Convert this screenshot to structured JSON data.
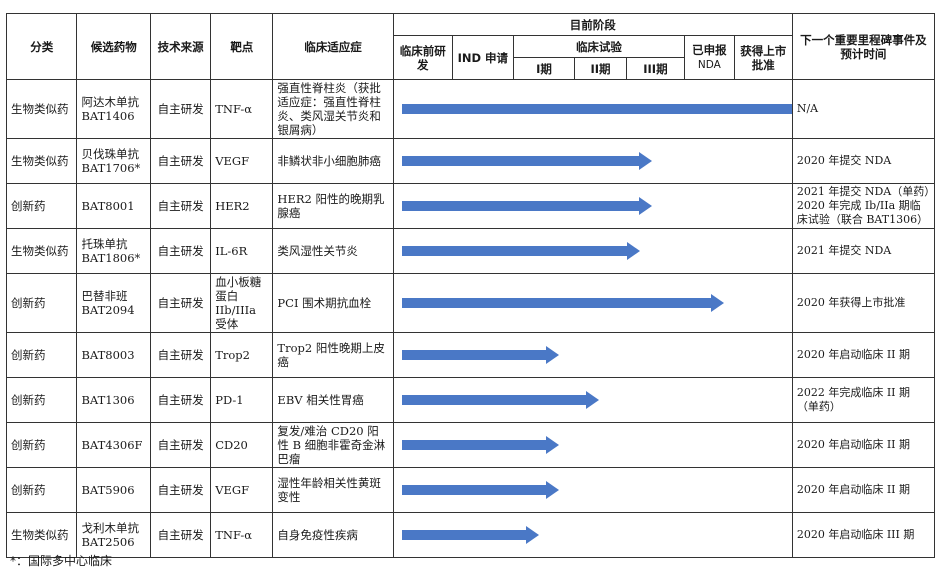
{
  "headers": {
    "category": "分类",
    "candidate": "候选药物",
    "tech_source": "技术来源",
    "target": "靶点",
    "indication": "临床适应症",
    "current_stage": "目前阶段",
    "preclinical": "临床前研发",
    "ind": "IND 申请",
    "clinical_trials": "临床试验",
    "phase1": "I期",
    "phase2": "II期",
    "phase3": "III期",
    "filed": "已申报",
    "filed_nda": "NDA",
    "approved": "获得上市批准",
    "milestone": "下一个重要里程碑事件及预计时间"
  },
  "rows": [
    {
      "category": "生物类似药",
      "drug": "阿达木单抗 BAT1406",
      "source": "自主研发",
      "target": "TNF-α",
      "indication": "强直性脊柱炎（获批适应症：强直性脊柱炎、类风湿关节炎和银屑病）",
      "stage_progress": 1.0,
      "milestone": "N/A"
    },
    {
      "category": "生物类似药",
      "drug": "贝伐珠单抗 BAT1706*",
      "source": "自主研发",
      "target": "VEGF",
      "indication": "非鳞状非小细胞肺癌",
      "stage_progress": 0.62,
      "milestone": "2020 年提交 NDA"
    },
    {
      "category": "创新药",
      "drug": "BAT8001",
      "source": "自主研发",
      "target": "HER2",
      "indication": "HER2 阳性的晚期乳腺癌",
      "stage_progress": 0.62,
      "milestone": "2021 年提交 NDA（单药）2020 年完成 Ib/IIa 期临床试验（联合 BAT1306）"
    },
    {
      "category": "生物类似药",
      "drug": "托珠单抗 BAT1806*",
      "source": "自主研发",
      "target": "IL-6R",
      "indication": "类风湿性关节炎",
      "stage_progress": 0.59,
      "milestone": "2021 年提交 NDA"
    },
    {
      "category": "创新药",
      "drug": "巴替非班 BAT2094",
      "source": "自主研发",
      "target": "血小板糖蛋白 IIb/IIIa 受体",
      "indication": "PCI 围术期抗血栓",
      "stage_progress": 0.8,
      "milestone": "2020 年获得上市批准"
    },
    {
      "category": "创新药",
      "drug": "BAT8003",
      "source": "自主研发",
      "target": "Trop2",
      "indication": "Trop2 阳性晚期上皮癌",
      "stage_progress": 0.39,
      "milestone": "2020 年启动临床 II 期"
    },
    {
      "category": "创新药",
      "drug": "BAT1306",
      "source": "自主研发",
      "target": "PD-1",
      "indication": "EBV 相关性胃癌",
      "stage_progress": 0.49,
      "milestone": "2022 年完成临床 II 期（单药）"
    },
    {
      "category": "创新药",
      "drug": "BAT4306F",
      "source": "自主研发",
      "target": "CD20",
      "indication": "复发/难治 CD20 阳性 B 细胞非霍奇金淋巴瘤",
      "stage_progress": 0.39,
      "milestone": "2020 年启动临床 II 期"
    },
    {
      "category": "创新药",
      "drug": "BAT5906",
      "source": "自主研发",
      "target": "VEGF",
      "indication": "湿性年龄相关性黄斑变性",
      "stage_progress": 0.39,
      "milestone": "2020 年启动临床 II 期"
    },
    {
      "category": "生物类似药",
      "drug": "戈利木单抗 BAT2506",
      "source": "自主研发",
      "target": "TNF-α",
      "indication": "自身免疫性疾病",
      "stage_progress": 0.34,
      "milestone": "2020 年启动临床 III 期"
    }
  ],
  "footnote": "*：国际多中心临床",
  "colors": {
    "arrow": "#4a78c6"
  }
}
